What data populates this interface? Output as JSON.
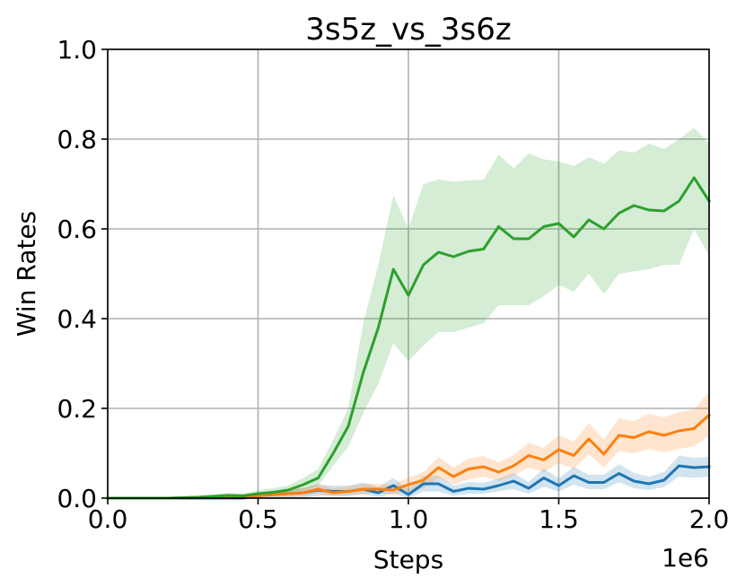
{
  "chart_data": {
    "type": "line",
    "title": "3s5z_vs_3s6z",
    "xlabel": "Steps",
    "ylabel": "Win Rates",
    "x_offset_label": "1e6",
    "xlim": [
      0.0,
      2.0
    ],
    "ylim": [
      0.0,
      1.0
    ],
    "x_ticks": [
      "0.0",
      "0.5",
      "1.0",
      "1.5",
      "2.0"
    ],
    "y_ticks": [
      "0.0",
      "0.2",
      "0.4",
      "0.6",
      "0.8",
      "1.0"
    ],
    "grid": true,
    "x": [
      0.0,
      0.05,
      0.1,
      0.15,
      0.2,
      0.25,
      0.3,
      0.35,
      0.4,
      0.45,
      0.5,
      0.55,
      0.6,
      0.65,
      0.7,
      0.75,
      0.8,
      0.85,
      0.9,
      0.95,
      1.0,
      1.05,
      1.1,
      1.15,
      1.2,
      1.25,
      1.3,
      1.35,
      1.4,
      1.45,
      1.5,
      1.55,
      1.6,
      1.65,
      1.7,
      1.75,
      1.8,
      1.85,
      1.9,
      1.95,
      2.0
    ],
    "series": [
      {
        "color": "#1f77b4",
        "values": [
          0.0,
          0.0,
          0.0,
          0.0,
          0.0,
          0.0,
          0.0,
          0.0,
          0.0,
          0.0,
          0.005,
          0.008,
          0.01,
          0.012,
          0.018,
          0.015,
          0.015,
          0.02,
          0.012,
          0.028,
          0.008,
          0.032,
          0.032,
          0.015,
          0.022,
          0.02,
          0.028,
          0.038,
          0.022,
          0.045,
          0.028,
          0.05,
          0.035,
          0.035,
          0.055,
          0.038,
          0.032,
          0.04,
          0.072,
          0.068,
          0.07
        ],
        "lower": [
          0.0,
          0.0,
          0.0,
          0.0,
          0.0,
          0.0,
          0.0,
          0.0,
          0.0,
          0.0,
          0.0,
          0.0,
          0.0,
          0.0,
          0.005,
          0.005,
          0.005,
          0.008,
          0.003,
          0.01,
          0.0,
          0.015,
          0.015,
          0.005,
          0.01,
          0.01,
          0.015,
          0.02,
          0.01,
          0.025,
          0.015,
          0.03,
          0.02,
          0.02,
          0.035,
          0.022,
          0.018,
          0.025,
          0.048,
          0.045,
          0.048
        ],
        "upper": [
          0.0,
          0.0,
          0.0,
          0.0,
          0.0,
          0.0,
          0.0,
          0.0,
          0.002,
          0.002,
          0.012,
          0.016,
          0.02,
          0.022,
          0.03,
          0.028,
          0.028,
          0.035,
          0.025,
          0.045,
          0.02,
          0.05,
          0.05,
          0.028,
          0.036,
          0.034,
          0.044,
          0.056,
          0.036,
          0.066,
          0.044,
          0.07,
          0.052,
          0.052,
          0.076,
          0.056,
          0.048,
          0.058,
          0.095,
          0.09,
          0.092
        ]
      },
      {
        "color": "#ff7f0e",
        "values": [
          0.0,
          0.0,
          0.0,
          0.0,
          0.0,
          0.001,
          0.002,
          0.003,
          0.004,
          0.004,
          0.005,
          0.008,
          0.01,
          0.012,
          0.02,
          0.012,
          0.015,
          0.02,
          0.02,
          0.018,
          0.03,
          0.04,
          0.068,
          0.048,
          0.065,
          0.07,
          0.058,
          0.072,
          0.095,
          0.085,
          0.108,
          0.095,
          0.132,
          0.098,
          0.14,
          0.135,
          0.148,
          0.14,
          0.15,
          0.155,
          0.185
        ],
        "lower": [
          0.0,
          0.0,
          0.0,
          0.0,
          0.0,
          0.0,
          0.0,
          0.0,
          0.0,
          0.0,
          0.0,
          0.0,
          0.002,
          0.004,
          0.01,
          0.004,
          0.006,
          0.01,
          0.01,
          0.008,
          0.015,
          0.022,
          0.045,
          0.03,
          0.042,
          0.048,
          0.038,
          0.05,
          0.068,
          0.058,
          0.078,
          0.065,
          0.098,
          0.068,
          0.105,
          0.1,
          0.11,
          0.102,
          0.11,
          0.115,
          0.14
        ],
        "upper": [
          0.0,
          0.0,
          0.0,
          0.0,
          0.001,
          0.003,
          0.005,
          0.007,
          0.009,
          0.009,
          0.012,
          0.016,
          0.02,
          0.022,
          0.032,
          0.022,
          0.026,
          0.032,
          0.032,
          0.03,
          0.046,
          0.058,
          0.092,
          0.068,
          0.088,
          0.094,
          0.08,
          0.096,
          0.124,
          0.112,
          0.14,
          0.126,
          0.168,
          0.13,
          0.178,
          0.172,
          0.188,
          0.18,
          0.192,
          0.198,
          0.238
        ]
      },
      {
        "color": "#2ca02c",
        "values": [
          0.0,
          0.0,
          0.0,
          0.0,
          0.0,
          0.001,
          0.002,
          0.004,
          0.006,
          0.005,
          0.01,
          0.013,
          0.018,
          0.03,
          0.045,
          0.1,
          0.16,
          0.28,
          0.38,
          0.51,
          0.452,
          0.52,
          0.548,
          0.538,
          0.55,
          0.555,
          0.605,
          0.578,
          0.578,
          0.605,
          0.612,
          0.582,
          0.62,
          0.6,
          0.635,
          0.652,
          0.642,
          0.64,
          0.662,
          0.714,
          0.662
        ],
        "lower": [
          0.0,
          0.0,
          0.0,
          0.0,
          0.0,
          0.0,
          0.0,
          0.0,
          0.0,
          0.0,
          0.004,
          0.006,
          0.01,
          0.018,
          0.028,
          0.072,
          0.115,
          0.19,
          0.255,
          0.345,
          0.305,
          0.34,
          0.37,
          0.37,
          0.38,
          0.39,
          0.43,
          0.43,
          0.43,
          0.45,
          0.475,
          0.46,
          0.5,
          0.455,
          0.5,
          0.505,
          0.51,
          0.52,
          0.52,
          0.6,
          0.54
        ],
        "upper": [
          0.0,
          0.0,
          0.0,
          0.0,
          0.0,
          0.003,
          0.005,
          0.008,
          0.012,
          0.01,
          0.018,
          0.022,
          0.028,
          0.045,
          0.065,
          0.13,
          0.2,
          0.39,
          0.52,
          0.675,
          0.6,
          0.7,
          0.71,
          0.705,
          0.708,
          0.71,
          0.765,
          0.735,
          0.768,
          0.755,
          0.75,
          0.74,
          0.76,
          0.745,
          0.775,
          0.77,
          0.79,
          0.778,
          0.8,
          0.825,
          0.79
        ]
      }
    ]
  }
}
